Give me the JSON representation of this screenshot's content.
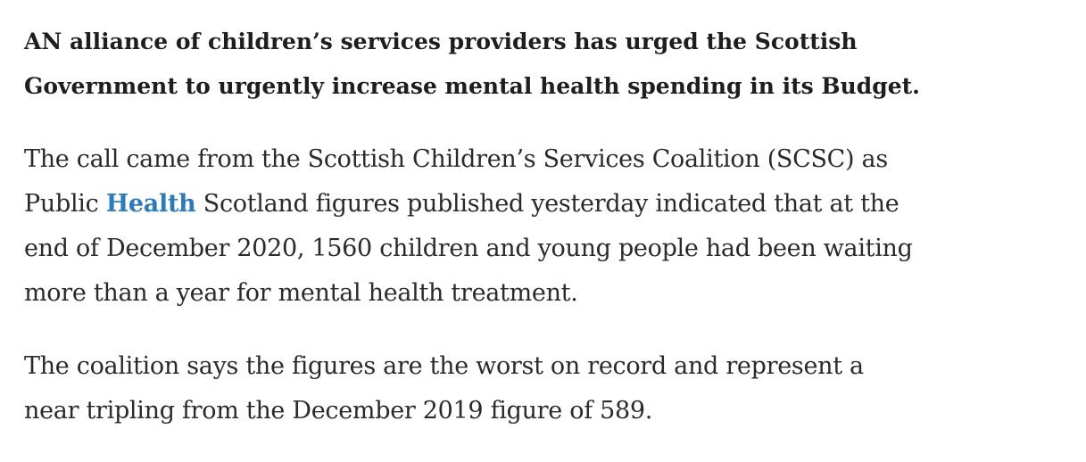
{
  "article": {
    "paragraphs": [
      {
        "style": "lead",
        "lines": [
          "AN alliance of children’s services providers has urged the Scottish",
          "Government to urgently increase mental health spending in its Budget."
        ]
      },
      {
        "style": "body",
        "lines": [
          "The call came from the Scottish Children’s Services Coalition (SCSC) as",
          {
            "before": "Public ",
            "link": "Health",
            "after": " Scotland figures published yesterday indicated that at the"
          },
          "end of December 2020, 1560 children and young people had been waiting",
          "more than a year for mental health treatment."
        ]
      },
      {
        "style": "body",
        "lines": [
          "The coalition says the figures are the worst on record and represent a",
          "near tripling from the December 2019 figure of 589."
        ]
      }
    ]
  }
}
